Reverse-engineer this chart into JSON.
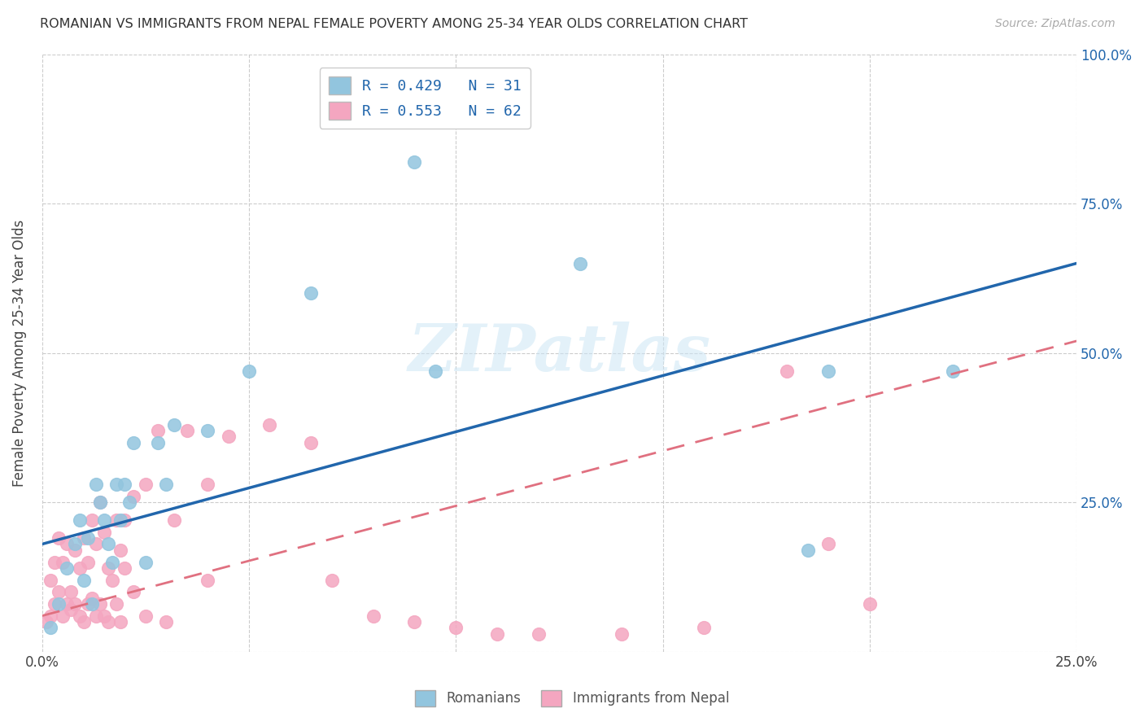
{
  "title": "ROMANIAN VS IMMIGRANTS FROM NEPAL FEMALE POVERTY AMONG 25-34 YEAR OLDS CORRELATION CHART",
  "source": "Source: ZipAtlas.com",
  "ylabel": "Female Poverty Among 25-34 Year Olds",
  "xlim": [
    0,
    0.25
  ],
  "ylim": [
    0,
    1.0
  ],
  "legend_label1": "Romanians",
  "legend_label2": "Immigrants from Nepal",
  "blue_color": "#92c5de",
  "pink_color": "#f4a6c0",
  "blue_line_color": "#2166ac",
  "pink_line_color": "#e07080",
  "watermark_text": "ZIPatlas",
  "blue_r": "0.429",
  "blue_n": "31",
  "pink_r": "0.553",
  "pink_n": "62",
  "blue_intercept": 0.18,
  "blue_slope": 1.88,
  "pink_intercept": 0.06,
  "pink_slope": 1.84,
  "blue_points_x": [
    0.002,
    0.004,
    0.006,
    0.008,
    0.009,
    0.01,
    0.011,
    0.012,
    0.013,
    0.014,
    0.015,
    0.016,
    0.017,
    0.018,
    0.019,
    0.02,
    0.021,
    0.022,
    0.025,
    0.028,
    0.03,
    0.032,
    0.04,
    0.05,
    0.065,
    0.09,
    0.095,
    0.13,
    0.185,
    0.19,
    0.22
  ],
  "blue_points_y": [
    0.04,
    0.08,
    0.14,
    0.18,
    0.22,
    0.12,
    0.19,
    0.08,
    0.28,
    0.25,
    0.22,
    0.18,
    0.15,
    0.28,
    0.22,
    0.28,
    0.25,
    0.35,
    0.15,
    0.35,
    0.28,
    0.38,
    0.37,
    0.47,
    0.6,
    0.82,
    0.47,
    0.65,
    0.17,
    0.47,
    0.47
  ],
  "pink_points_x": [
    0.001,
    0.002,
    0.002,
    0.003,
    0.003,
    0.004,
    0.004,
    0.005,
    0.005,
    0.006,
    0.006,
    0.007,
    0.007,
    0.008,
    0.008,
    0.009,
    0.009,
    0.01,
    0.01,
    0.011,
    0.011,
    0.012,
    0.012,
    0.013,
    0.013,
    0.014,
    0.014,
    0.015,
    0.015,
    0.016,
    0.016,
    0.017,
    0.018,
    0.018,
    0.019,
    0.019,
    0.02,
    0.02,
    0.022,
    0.022,
    0.025,
    0.025,
    0.028,
    0.03,
    0.032,
    0.035,
    0.04,
    0.04,
    0.045,
    0.055,
    0.065,
    0.07,
    0.08,
    0.09,
    0.1,
    0.11,
    0.12,
    0.14,
    0.16,
    0.18,
    0.19,
    0.2
  ],
  "pink_points_y": [
    0.05,
    0.06,
    0.12,
    0.08,
    0.15,
    0.1,
    0.19,
    0.06,
    0.15,
    0.08,
    0.18,
    0.07,
    0.1,
    0.08,
    0.17,
    0.06,
    0.14,
    0.05,
    0.19,
    0.08,
    0.15,
    0.09,
    0.22,
    0.06,
    0.18,
    0.08,
    0.25,
    0.06,
    0.2,
    0.14,
    0.05,
    0.12,
    0.08,
    0.22,
    0.05,
    0.17,
    0.14,
    0.22,
    0.1,
    0.26,
    0.06,
    0.28,
    0.37,
    0.05,
    0.22,
    0.37,
    0.12,
    0.28,
    0.36,
    0.38,
    0.35,
    0.12,
    0.06,
    0.05,
    0.04,
    0.03,
    0.03,
    0.03,
    0.04,
    0.47,
    0.18,
    0.08
  ]
}
